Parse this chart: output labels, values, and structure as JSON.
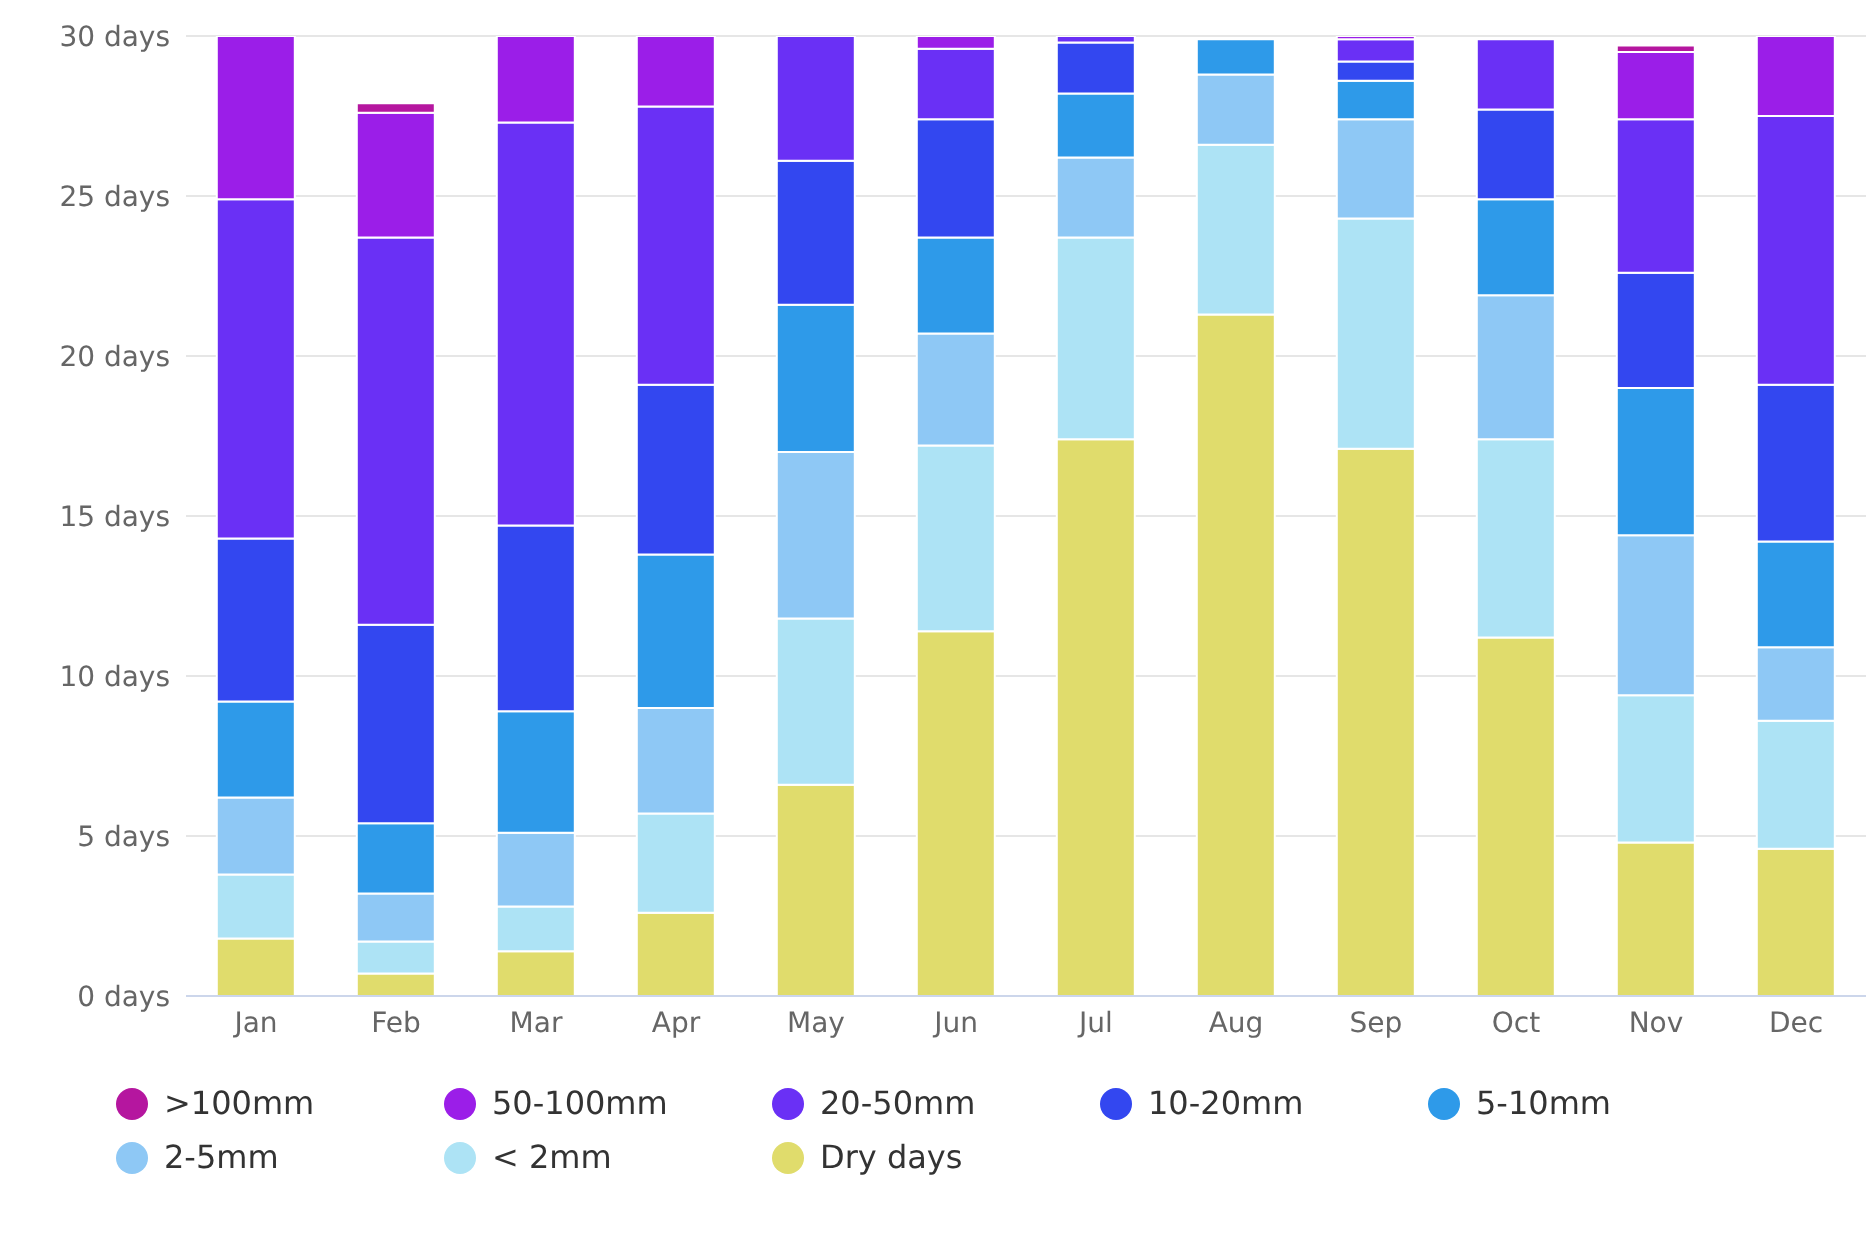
{
  "chart_data": {
    "type": "bar",
    "stacked": true,
    "categories": [
      "Jan",
      "Feb",
      "Mar",
      "Apr",
      "May",
      "Jun",
      "Jul",
      "Aug",
      "Sep",
      "Oct",
      "Nov",
      "Dec"
    ],
    "series": [
      {
        "name": "Dry days",
        "color": "#e0dc6c",
        "values": [
          1.8,
          0.7,
          1.4,
          2.6,
          6.6,
          11.4,
          17.4,
          21.3,
          17.1,
          11.2,
          4.8,
          4.6
        ]
      },
      {
        "name": "< 2mm",
        "color": "#ade3f5",
        "values": [
          2.0,
          1.0,
          1.4,
          3.1,
          5.2,
          5.8,
          6.3,
          5.3,
          7.2,
          6.2,
          4.6,
          4.0
        ]
      },
      {
        "name": "2-5mm",
        "color": "#8ec8f5",
        "values": [
          2.4,
          1.5,
          2.3,
          3.3,
          5.2,
          3.5,
          2.5,
          2.2,
          3.1,
          4.5,
          5.0,
          2.3
        ]
      },
      {
        "name": "5-10mm",
        "color": "#2e9ae9",
        "values": [
          3.0,
          2.2,
          3.8,
          4.8,
          4.6,
          3.0,
          2.0,
          1.1,
          1.2,
          3.0,
          4.6,
          3.3
        ]
      },
      {
        "name": "10-20mm",
        "color": "#3347f0",
        "values": [
          5.1,
          6.2,
          5.8,
          5.3,
          4.5,
          3.7,
          1.6,
          0,
          0.6,
          2.8,
          3.6,
          4.9
        ]
      },
      {
        "name": "20-50mm",
        "color": "#6a30f5",
        "values": [
          10.6,
          12.1,
          12.6,
          8.7,
          3.9,
          2.2,
          0.2,
          0,
          0.7,
          2.2,
          4.8,
          8.4
        ]
      },
      {
        "name": "50-100mm",
        "color": "#9b1ee8",
        "values": [
          5.1,
          3.9,
          2.7,
          2.2,
          0,
          0.4,
          0,
          0,
          0.1,
          0,
          2.1,
          2.6
        ]
      },
      {
        "name": ">100mm",
        "color": "#b5169f",
        "values": [
          0,
          0.3,
          0,
          0,
          0,
          0,
          0,
          0,
          0,
          0,
          0.2,
          0
        ]
      }
    ],
    "ylim": [
      0,
      30
    ],
    "yticks": [
      {
        "value": 0,
        "label": "0 days"
      },
      {
        "value": 5,
        "label": "5 days"
      },
      {
        "value": 10,
        "label": "10 days"
      },
      {
        "value": 15,
        "label": "15 days"
      },
      {
        "value": 20,
        "label": "20 days"
      },
      {
        "value": 25,
        "label": "25 days"
      },
      {
        "value": 30,
        "label": "30 days"
      }
    ],
    "grid": "y",
    "legend": "bottom"
  }
}
